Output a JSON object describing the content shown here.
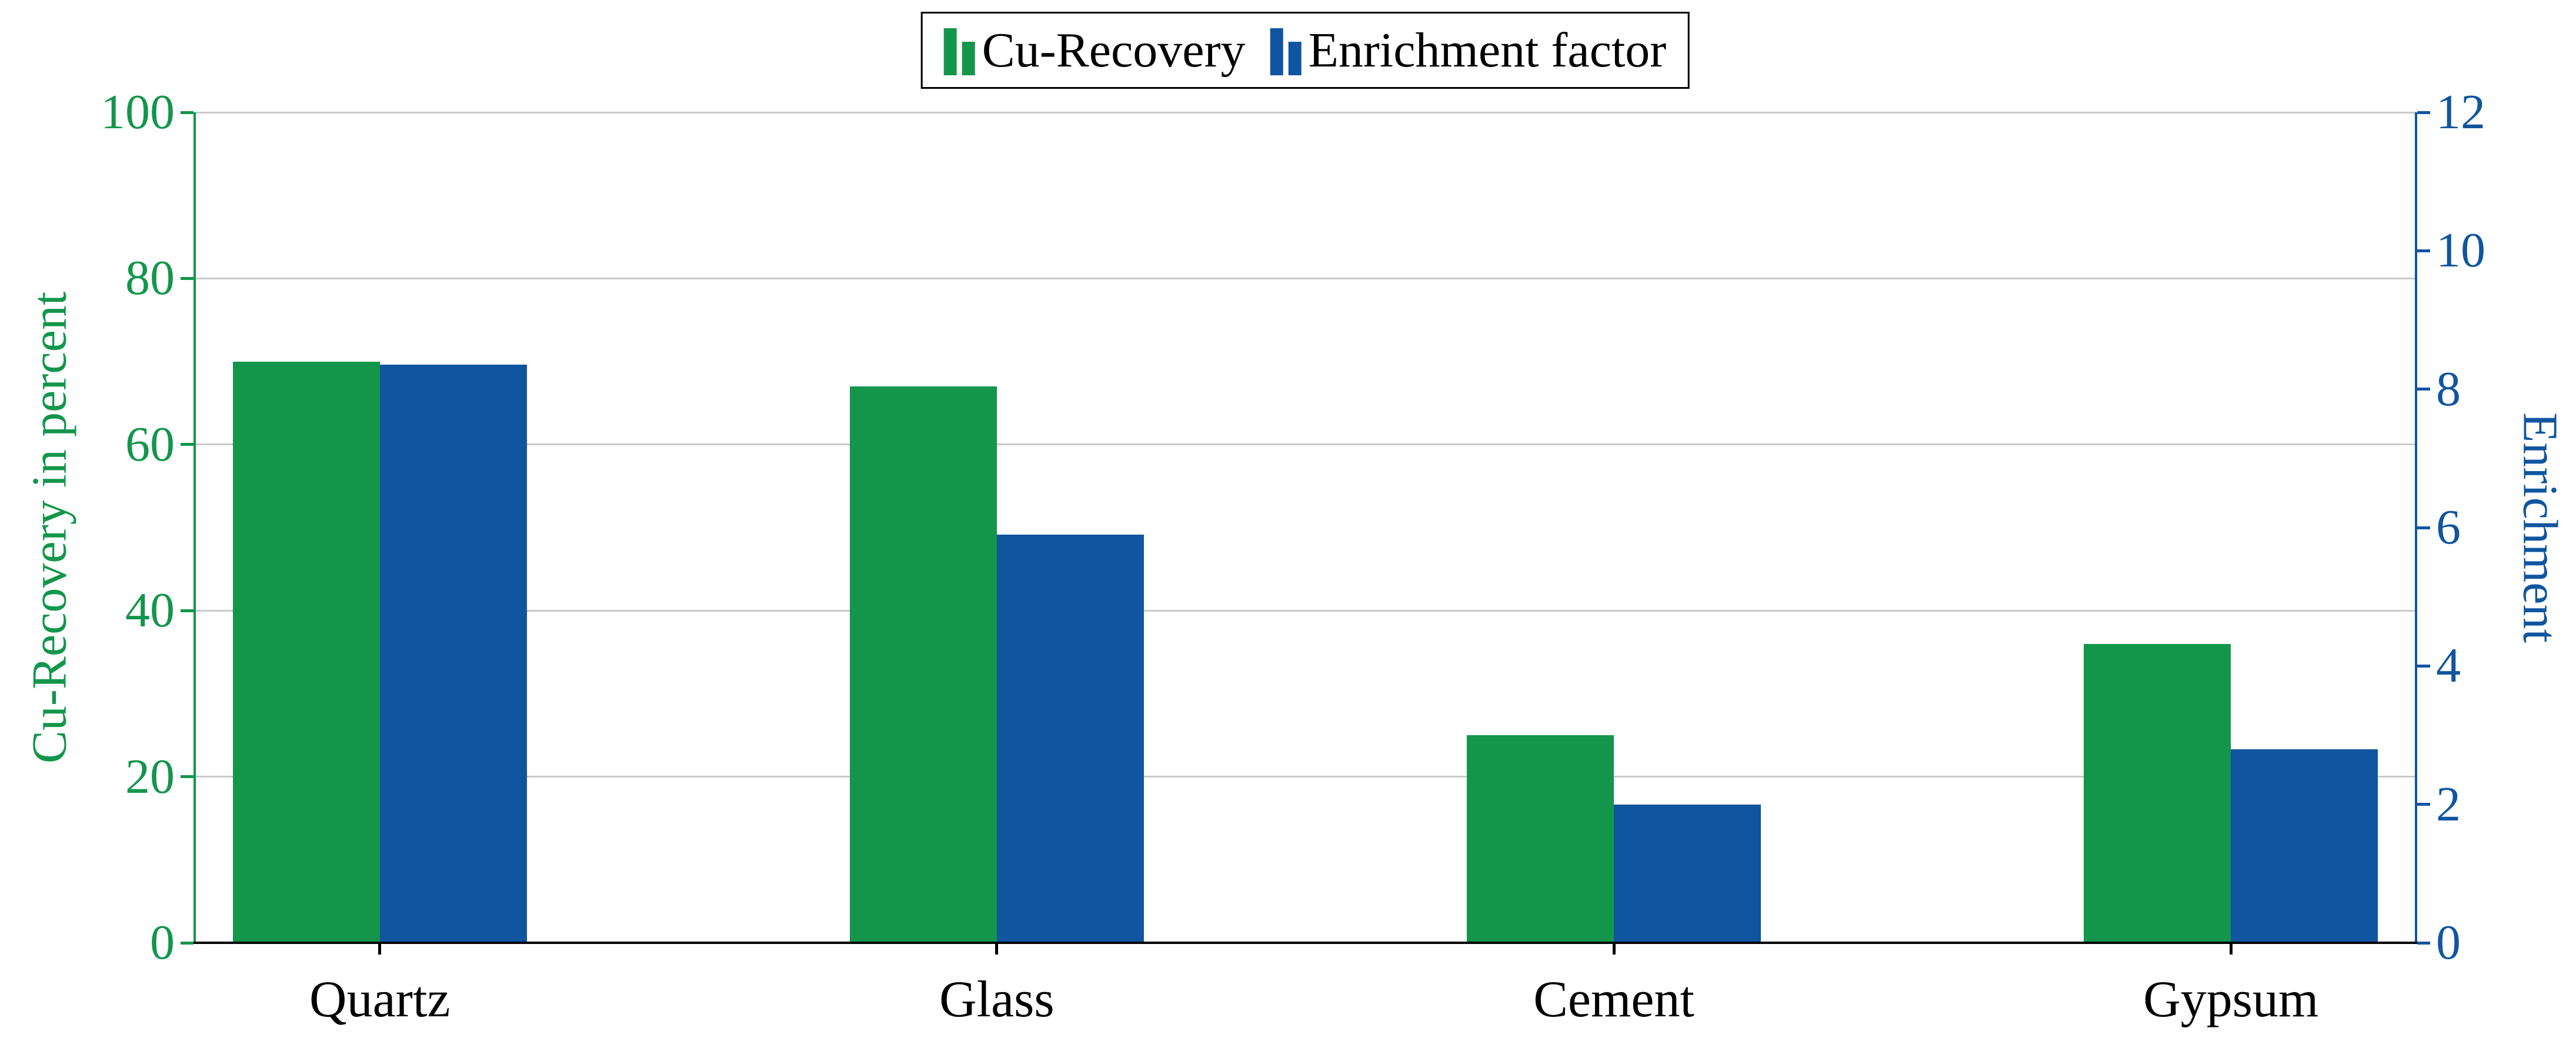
{
  "chart_data": {
    "type": "bar",
    "title": "",
    "categories": [
      "Quartz",
      "Glass",
      "Cement",
      "Gypsum"
    ],
    "series": [
      {
        "name": "Cu-Recovery",
        "axis": "left",
        "color": "#13964b",
        "values": [
          70,
          67,
          25,
          36
        ]
      },
      {
        "name": "Enrichment factor",
        "axis": "right",
        "color": "#10559f",
        "values": [
          8.35,
          5.9,
          2.0,
          2.8
        ]
      }
    ],
    "left_axis": {
      "label": "Cu-Recovery in percent",
      "min": 0,
      "max": 100,
      "ticks": [
        0,
        20,
        40,
        60,
        80,
        100
      ],
      "color": "#13964b"
    },
    "right_axis": {
      "label": "Enrichment",
      "min": 0,
      "max": 12,
      "ticks": [
        0,
        2,
        4,
        6,
        8,
        10,
        12
      ],
      "color": "#10559f"
    },
    "grid": true,
    "gridline_color": "#c9c9c9",
    "legend_position": "top-center",
    "legend": [
      "Cu-Recovery",
      "Enrichment factor"
    ]
  }
}
